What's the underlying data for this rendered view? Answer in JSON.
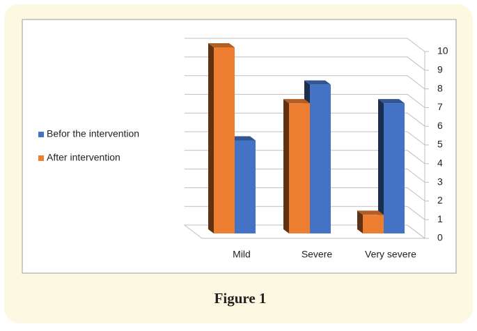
{
  "chart_data": {
    "type": "bar3d",
    "caption": "Figure 1",
    "categories": [
      "Mild",
      "Severe",
      "Very severe"
    ],
    "series": [
      {
        "name": "Befor the intervention",
        "color": "#4472c4",
        "values": [
          5,
          8,
          7
        ]
      },
      {
        "name": "After intervention",
        "color": "#ed7d31",
        "values": [
          10,
          7,
          1
        ]
      }
    ],
    "ylim": [
      0,
      10
    ],
    "yticks": [
      0,
      1,
      2,
      3,
      4,
      5,
      6,
      7,
      8,
      9,
      10
    ],
    "grid": true,
    "legend": "left"
  }
}
